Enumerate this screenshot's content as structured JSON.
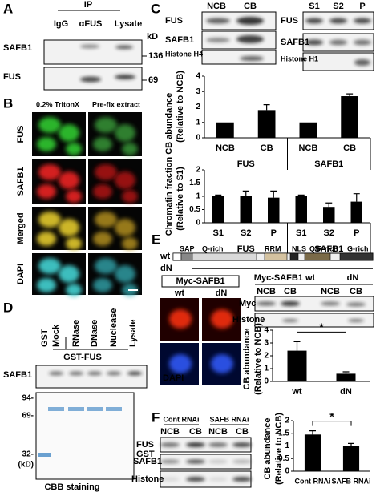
{
  "panels": {
    "A": {
      "label": "A",
      "ip": "IP",
      "lanes": [
        "IgG",
        "αFUS",
        "Lysate"
      ],
      "kd": "kD",
      "rows": [
        "SAFB1",
        "FUS"
      ],
      "markers": [
        "136",
        "69"
      ]
    },
    "B": {
      "label": "B",
      "columns": [
        "0.2% TritonX",
        "Pre-fix extract"
      ],
      "rows": [
        "FUS",
        "SAFB1",
        "Merged",
        "DAPI"
      ]
    },
    "C": {
      "label": "C",
      "left_lanes": [
        "NCB",
        "CB"
      ],
      "left_rows": [
        "FUS",
        "SAFB1",
        "Histone H4"
      ],
      "right_lanes": [
        "S1",
        "S2",
        "P"
      ],
      "right_rows": [
        "FUS",
        "SAFB1",
        "Histone H1"
      ],
      "ylabel": "Chromatin fraction CB abundance"
    },
    "D": {
      "label": "D",
      "lanes": [
        "GST",
        "Mock",
        "RNase",
        "DNase",
        "Nuclease",
        "Lysate"
      ],
      "group": "GST-FUS",
      "row": "SAFB1",
      "markers": [
        "94-",
        "69-",
        "32-"
      ],
      "unit": "(kD)",
      "band": "GST",
      "caption": "CBB staining"
    },
    "E": {
      "label": "E",
      "constructs": [
        "wt",
        "dN"
      ],
      "domains": [
        "SAP",
        "Q-rich",
        "RRM",
        "NLS",
        "Q/R-rich",
        "G-rich"
      ],
      "image_title": "Myc-SAFB1",
      "image_cols": [
        "wt",
        "dN"
      ],
      "image_row": "DAPI",
      "blot_title": "Myc-SAFB1 wt",
      "blot_title2": "dN",
      "lanes": [
        "NCB",
        "CB",
        "NCB",
        "CB"
      ],
      "rows": [
        "Myc",
        "Histone"
      ]
    },
    "F": {
      "label": "F",
      "groups": [
        "Cont RNAi",
        "SAFB RNAi"
      ],
      "lanes": [
        "NCB",
        "CB",
        "NCB",
        "CB"
      ],
      "rows": [
        "FUS",
        "SAFB1",
        "Histone"
      ]
    }
  },
  "chart_data": [
    {
      "type": "bar",
      "ylabel": "(Relative to NCB)",
      "categories": [
        "NCB",
        "CB",
        "NCB",
        "CB"
      ],
      "groups": [
        "FUS",
        "SAFB1"
      ],
      "values": [
        1,
        1.8,
        1,
        2.7
      ],
      "errors": [
        0,
        0.35,
        0,
        0.15
      ],
      "ylim": [
        0,
        4
      ],
      "yticks": [
        0,
        1,
        2,
        3,
        4
      ],
      "color": "#000000"
    },
    {
      "type": "bar",
      "ylabel": "(Relative to S1)",
      "categories": [
        "S1",
        "S2",
        "P",
        "S1",
        "S2",
        "P"
      ],
      "groups": [
        "FUS",
        "SAFB1"
      ],
      "values": [
        1,
        1.0,
        0.95,
        1,
        0.6,
        0.8
      ],
      "errors": [
        0.05,
        0.2,
        0.25,
        0.05,
        0.15,
        0.3
      ],
      "ylim": [
        0,
        2
      ],
      "yticks": [
        0,
        0.5,
        1,
        1.5,
        2
      ],
      "color": "#000000"
    },
    {
      "type": "bar",
      "ylabel": [
        "CB abundance",
        "(Relative to NCB)"
      ],
      "categories": [
        "wt",
        "dN"
      ],
      "values": [
        2.4,
        0.6
      ],
      "errors": [
        0.7,
        0.15
      ],
      "ylim": [
        0,
        4
      ],
      "yticks": [
        0,
        1,
        2,
        3,
        4
      ],
      "annotation": "*",
      "color": "#000000"
    },
    {
      "type": "bar",
      "ylabel": [
        "CB abundance",
        "(Relative to NCB)"
      ],
      "categories": [
        "Cont RNAi",
        "SAFB RNAi"
      ],
      "values": [
        1.45,
        1.0
      ],
      "errors": [
        0.15,
        0.1
      ],
      "ylim": [
        0,
        2
      ],
      "yticks": [
        0,
        0.5,
        1,
        1.5,
        2
      ],
      "annotation": "*",
      "color": "#000000"
    }
  ]
}
